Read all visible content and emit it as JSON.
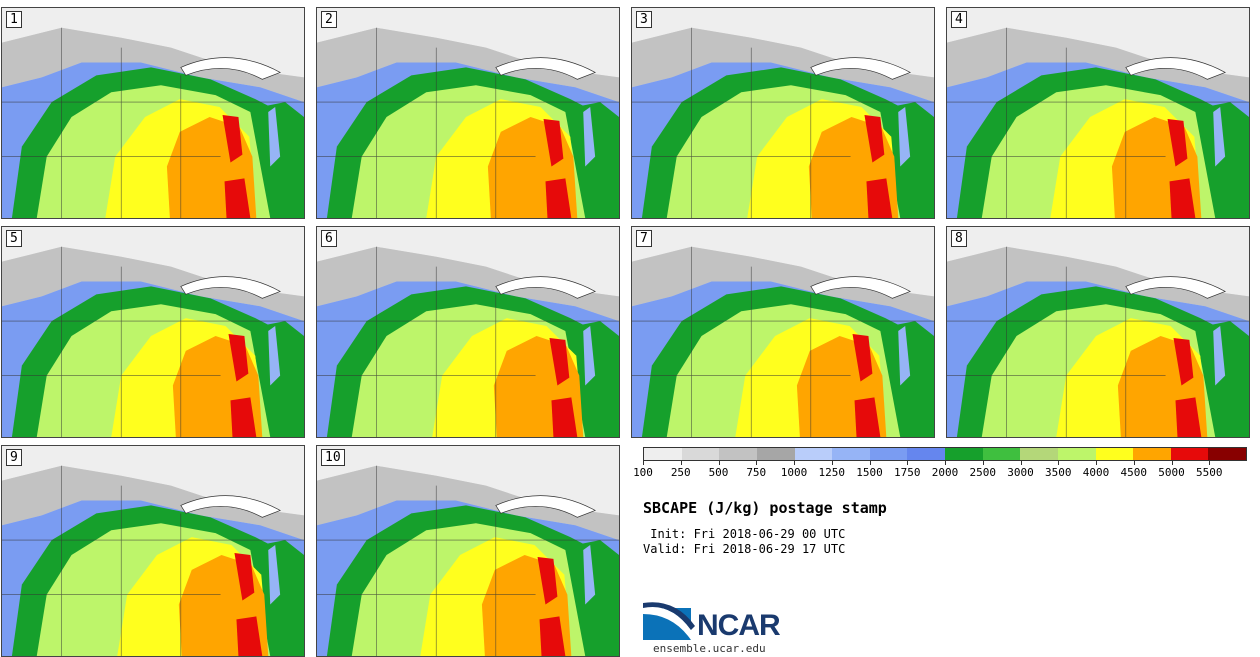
{
  "product": {
    "title": "SBCAPE (J/kg) postage stamp",
    "init": " Init: Fri 2018-06-29 00 UTC",
    "valid": "Valid: Fri 2018-06-29 17 UTC"
  },
  "members": [
    "1",
    "2",
    "3",
    "4",
    "5",
    "6",
    "7",
    "8",
    "9",
    "10"
  ],
  "colorbar": {
    "colors": [
      "#eeeeee",
      "#d9d9d9",
      "#c2c2c2",
      "#a6a6a6",
      "#b9cdfa",
      "#96b4f6",
      "#7a9cf2",
      "#6586ee",
      "#16a02c",
      "#3fbf3f",
      "#b4d779",
      "#bdf56a",
      "#ffff1e",
      "#ffa500",
      "#e60a0a",
      "#880000"
    ],
    "ticks": [
      "100",
      "250",
      "500",
      "750",
      "1000",
      "1250",
      "1500",
      "1750",
      "2000",
      "2500",
      "3000",
      "3500",
      "4000",
      "4500",
      "5000",
      "5500"
    ]
  },
  "logo": {
    "name": "NCAR",
    "url": "ensemble.ucar.edu"
  }
}
